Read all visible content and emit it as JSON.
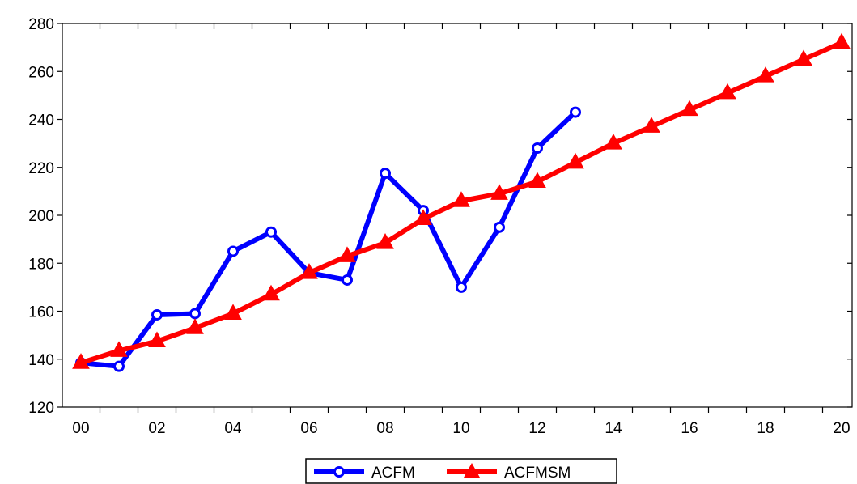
{
  "chart_data": {
    "type": "line",
    "title": "",
    "xlabel": "",
    "ylabel": "",
    "x": [
      "2000",
      "2001",
      "2002",
      "2003",
      "2004",
      "2005",
      "2006",
      "2007",
      "2008",
      "2009",
      "2010",
      "2011",
      "2012",
      "2013",
      "2014",
      "2015",
      "2016",
      "2017",
      "2018",
      "2019",
      "2020"
    ],
    "x_tick_labels": [
      "00",
      "02",
      "04",
      "06",
      "08",
      "10",
      "12",
      "14",
      "16",
      "18",
      "20"
    ],
    "ylim": [
      120,
      280
    ],
    "y_ticks": [
      120,
      140,
      160,
      180,
      200,
      220,
      240,
      260,
      280
    ],
    "grid": false,
    "legend_position": "bottom-center",
    "series": [
      {
        "name": "ACFM",
        "color": "#0000ff",
        "marker": "circle",
        "values": [
          138.5,
          137,
          158.5,
          159,
          185,
          193,
          176,
          173,
          217.5,
          202,
          170,
          195,
          228,
          243,
          null,
          null,
          null,
          null,
          null,
          null,
          null
        ]
      },
      {
        "name": "ACFMSM",
        "color": "#ff0000",
        "marker": "triangle",
        "values": [
          138.5,
          143.5,
          147.5,
          153,
          159,
          167,
          176,
          183,
          188.5,
          198.5,
          206,
          209,
          214,
          222,
          230,
          237,
          244,
          251,
          258,
          265,
          272
        ]
      }
    ]
  }
}
